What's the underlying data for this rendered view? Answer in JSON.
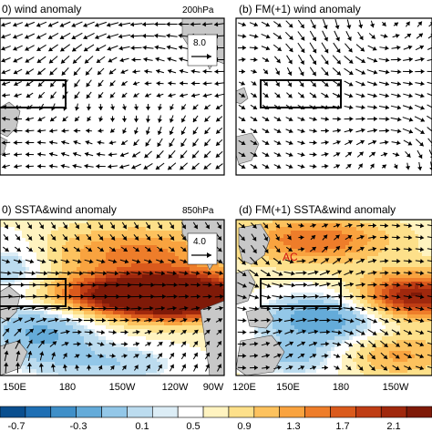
{
  "chart_data": [
    {
      "type": "vector",
      "title": "0) wind anomaly",
      "level": "200hPa",
      "ref_vector": "8.0",
      "box_lon": [
        150,
        280
      ],
      "box_lat": [
        -5,
        5
      ]
    },
    {
      "type": "vector",
      "title": "(b) FM(+1) wind anomaly",
      "level": "",
      "box_lon": [
        150,
        280
      ],
      "box_lat": [
        -5,
        5
      ]
    },
    {
      "type": "heatmap",
      "title": "0) SSTA&wind anomaly",
      "level": "850hPa",
      "ref_vector": "4.0",
      "xticks": [
        "150E",
        "180",
        "150W",
        "120W",
        "90W"
      ],
      "box_lon": [
        150,
        280
      ],
      "box_lat": [
        -5,
        5
      ]
    },
    {
      "type": "heatmap",
      "title": "(d) FM(+1) SSTA&wind anomaly",
      "level": "",
      "annotation": "AC",
      "xticks": [
        "120E",
        "150E",
        "180",
        "150W"
      ],
      "box_lon": [
        150,
        280
      ],
      "box_lat": [
        -5,
        5
      ]
    }
  ],
  "colorbar": {
    "labels": [
      "-0.7",
      "-0.3",
      "0.1",
      "0.5",
      "0.9",
      "1.3",
      "1.7",
      "2.1"
    ],
    "colors": [
      "#0a4f8f",
      "#1f6fb4",
      "#3f8fc8",
      "#64abd9",
      "#93c7e8",
      "#bcdcef",
      "#dcedf6",
      "#ffffff",
      "#fff3c0",
      "#fde08a",
      "#fdc25e",
      "#f9a33f",
      "#ee7d2a",
      "#da5a1c",
      "#bf3d14",
      "#a0280d",
      "#7f1a08"
    ]
  }
}
